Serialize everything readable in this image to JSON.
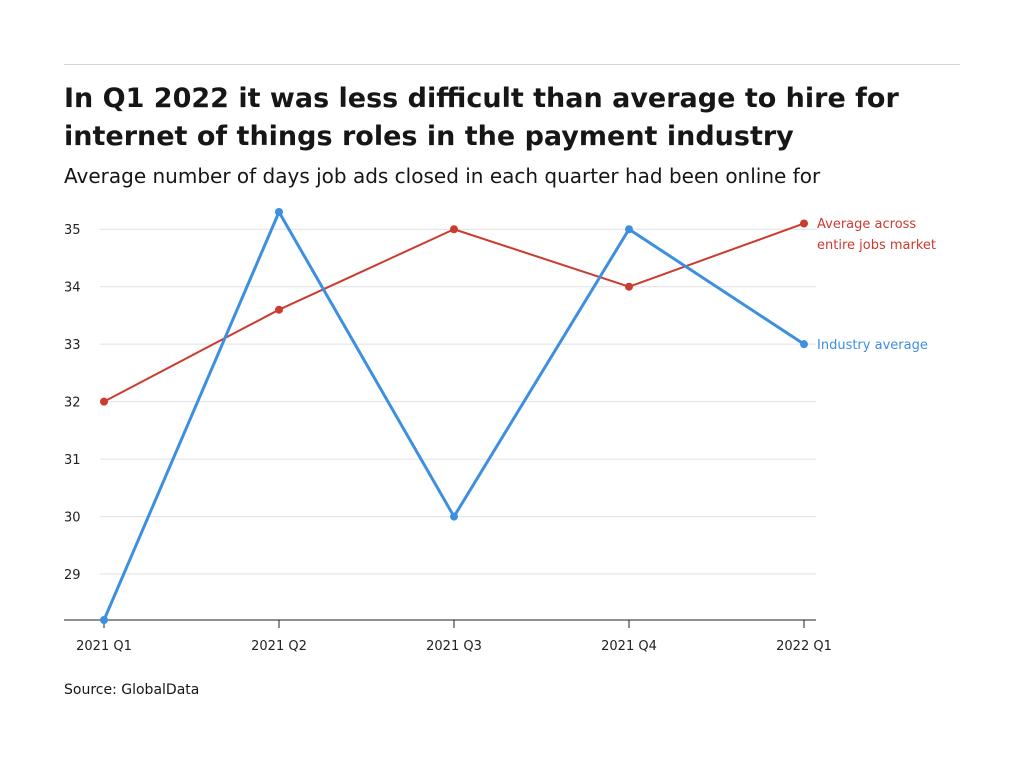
{
  "header": {
    "title": "In Q1 2022 it was less difficult than average to hire for internet of things roles in the payment industry",
    "subtitle": "Average number of days job ads closed in each quarter had been online for"
  },
  "footer": {
    "source": "Source: GlobalData"
  },
  "colors": {
    "market": "#cc3b2f",
    "industry": "#3d8fe0",
    "grid": "#e0e0e0",
    "axis": "#222222"
  },
  "chart_data": {
    "type": "line",
    "categories": [
      "2021 Q1",
      "2021 Q2",
      "2021 Q3",
      "2021 Q4",
      "2022 Q1"
    ],
    "series": [
      {
        "key": "market",
        "label_lines": [
          "Average across",
          "entire jobs market"
        ],
        "values": [
          32.0,
          33.6,
          35.0,
          34.0,
          35.1
        ]
      },
      {
        "key": "industry",
        "label_lines": [
          "Industry average"
        ],
        "values": [
          28.2,
          35.3,
          30.0,
          35.0,
          33.0
        ]
      }
    ],
    "y_ticks": [
      29,
      30,
      31,
      32,
      33,
      34,
      35
    ],
    "ylim": [
      28.2,
      35.3
    ],
    "grid": true,
    "legend": "inline-right"
  }
}
